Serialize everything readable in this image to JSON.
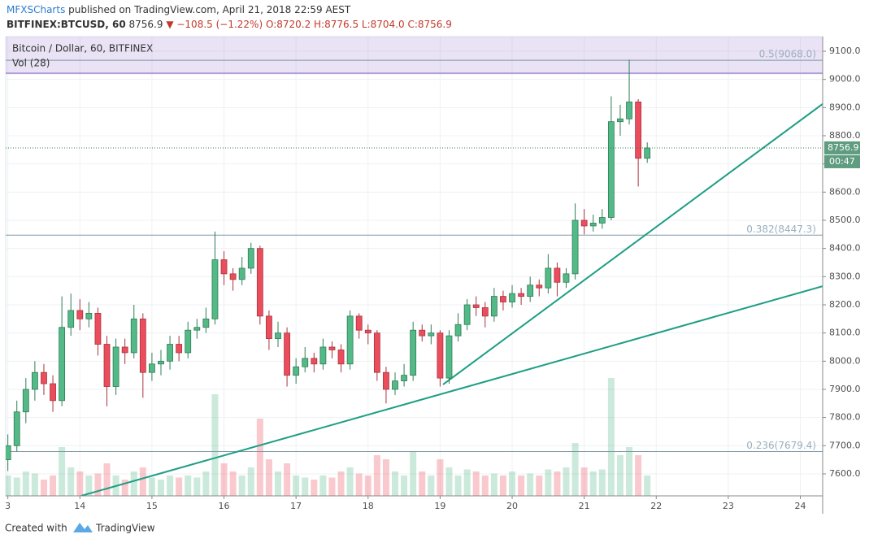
{
  "header": {
    "author": "MFXSCharts",
    "published": "published on TradingView.com, April 21, 2018 22:59 AEST",
    "symbol": "BITFINEX:BTCUSD, 60",
    "last": "8756.9",
    "change": "▼ −108.5 (−1.22%)",
    "ohlc": "O:8720.2 H:8776.5 L:8704.0 C:8756.9"
  },
  "footer": {
    "created": "Created with",
    "brand": "TradingView"
  },
  "chart_data": {
    "type": "candlestick",
    "legend": "Bitcoin / Dollar, 60, BITFINEX",
    "volume_legend": "Vol (28)",
    "countdown": "00:47",
    "up_color": "#53b987",
    "down_color": "#eb4d5c",
    "xlim": [
      12.97,
      24.31
    ],
    "ylim": [
      7522,
      9152
    ],
    "volume_lim": [
      0,
      3000
    ],
    "xticks": [
      {
        "value": 13,
        "label": "3"
      },
      14,
      15,
      16,
      17,
      18,
      19,
      20,
      21,
      22,
      23,
      24
    ],
    "yticks": [
      {
        "value": 7600,
        "label": "7600.0"
      },
      {
        "value": 7700,
        "label": "7700.0"
      },
      {
        "value": 7800,
        "label": "7800.0"
      },
      {
        "value": 7900,
        "label": "7900.0"
      },
      {
        "value": 8000,
        "label": "8000.0"
      },
      {
        "value": 8100,
        "label": "8100.0"
      },
      {
        "value": 8200,
        "label": "8200.0"
      },
      {
        "value": 8300,
        "label": "8300.0"
      },
      {
        "value": 8400,
        "label": "8400.0"
      },
      {
        "value": 8500,
        "label": "8500.0"
      },
      {
        "value": 8600,
        "label": "8600.0"
      },
      {
        "value": 8700,
        "label": "8700.0"
      },
      {
        "value": 8800,
        "label": "8800.0"
      },
      {
        "value": 8900,
        "label": "8900.0"
      },
      {
        "value": 9000,
        "label": "9000.0"
      },
      {
        "value": 9100,
        "label": "9100.0"
      }
    ],
    "grid": true,
    "fib_levels": [
      {
        "value": 9068.0,
        "label": "0.5(9068.0)"
      },
      {
        "value": 8447.3,
        "label": "0.382(8447.3)"
      },
      {
        "value": 7679.4,
        "label": "0.236(7679.4)"
      }
    ],
    "trendlines": [
      {
        "x": [
          14.016,
          24.31
        ],
        "y": [
          7522,
          8266
        ],
        "color": "#1e9e84"
      },
      {
        "x": [
          19.04,
          24.31
        ],
        "y": [
          7917,
          8913
        ],
        "color": "#1e9e84"
      }
    ],
    "x": [
      13,
      13.125,
      13.25,
      13.375,
      13.5,
      13.625,
      13.75,
      13.875,
      14,
      14.125,
      14.25,
      14.375,
      14.5,
      14.625,
      14.75,
      14.875,
      15,
      15.125,
      15.25,
      15.375,
      15.5,
      15.625,
      15.75,
      15.875,
      16,
      16.125,
      16.25,
      16.375,
      16.5,
      16.625,
      16.75,
      16.875,
      17,
      17.125,
      17.25,
      17.375,
      17.5,
      17.625,
      17.75,
      17.875,
      18,
      18.125,
      18.25,
      18.375,
      18.5,
      18.625,
      18.75,
      18.875,
      19,
      19.125,
      19.25,
      19.375,
      19.5,
      19.625,
      19.75,
      19.875,
      20,
      20.125,
      20.25,
      20.375,
      20.5,
      20.625,
      20.75,
      20.875,
      21,
      21.125,
      21.25,
      21.375,
      21.5,
      21.625,
      21.75,
      21.875
    ],
    "open": [
      7650,
      7700,
      7820,
      7900,
      7960,
      7920,
      7860,
      8120,
      8180,
      8150,
      8170,
      8060,
      7910,
      8050,
      8030,
      8150,
      7960,
      7990,
      8000,
      8060,
      8030,
      8110,
      8120,
      8150,
      8360,
      8310,
      8290,
      8330,
      8400,
      8160,
      8080,
      8100,
      7950,
      7980,
      8010,
      7990,
      8050,
      8040,
      7990,
      8160,
      8110,
      8100,
      7960,
      7900,
      7930,
      7950,
      8110,
      8090,
      8100,
      7940,
      8090,
      8130,
      8200,
      8190,
      8160,
      8230,
      8210,
      8240,
      8230,
      8270,
      8260,
      8330,
      8280,
      8310,
      8500,
      8480,
      8490,
      8510,
      8850,
      8860,
      8920,
      8720.2
    ],
    "high": [
      7740,
      7860,
      7940,
      8000,
      7990,
      7950,
      8230,
      8240,
      8220,
      8210,
      8190,
      8090,
      8080,
      8080,
      8200,
      8170,
      8030,
      8040,
      8090,
      8090,
      8140,
      8150,
      8190,
      8460,
      8390,
      8330,
      8370,
      8420,
      8410,
      8180,
      8140,
      8120,
      8010,
      8050,
      8030,
      8080,
      8070,
      8060,
      8180,
      8170,
      8130,
      8110,
      7980,
      7960,
      7990,
      8140,
      8130,
      8130,
      8110,
      8110,
      8170,
      8220,
      8230,
      8210,
      8260,
      8250,
      8270,
      8260,
      8300,
      8290,
      8380,
      8350,
      8330,
      8560,
      8540,
      8520,
      8540,
      8940,
      8910,
      9070,
      8930,
      8776.5
    ],
    "low": [
      7610,
      7680,
      7780,
      7860,
      7880,
      7820,
      7840,
      8090,
      8110,
      8120,
      8020,
      7840,
      7880,
      7990,
      8010,
      7870,
      7930,
      7950,
      7970,
      8000,
      8010,
      8080,
      8100,
      8130,
      8270,
      8250,
      8270,
      8310,
      8130,
      8040,
      8050,
      7910,
      7920,
      7960,
      7960,
      7970,
      8010,
      7960,
      7970,
      8080,
      8060,
      7930,
      7850,
      7880,
      7910,
      7930,
      8070,
      8060,
      7910,
      7920,
      8070,
      8110,
      8160,
      8120,
      8140,
      8180,
      8190,
      8200,
      8210,
      8230,
      8240,
      8230,
      8260,
      8290,
      8450,
      8460,
      8470,
      8500,
      8800,
      8840,
      8620,
      8704
    ],
    "close": [
      7700,
      7820,
      7900,
      7960,
      7920,
      7860,
      8120,
      8180,
      8150,
      8170,
      8060,
      7910,
      8050,
      8030,
      8150,
      7960,
      7990,
      8000,
      8060,
      8030,
      8110,
      8120,
      8150,
      8360,
      8310,
      8290,
      8330,
      8400,
      8160,
      8080,
      8100,
      7950,
      7980,
      8010,
      7990,
      8050,
      8040,
      7990,
      8160,
      8110,
      8100,
      7960,
      7900,
      7930,
      7950,
      8110,
      8090,
      8100,
      7940,
      8090,
      8130,
      8200,
      8190,
      8160,
      8230,
      8210,
      8240,
      8230,
      8270,
      8260,
      8330,
      8280,
      8310,
      8500,
      8480,
      8490,
      8510,
      8850,
      8860,
      8920,
      8720,
      8756.9
    ],
    "volume": [
      500,
      450,
      600,
      550,
      400,
      500,
      1200,
      700,
      600,
      500,
      550,
      800,
      500,
      400,
      600,
      700,
      450,
      400,
      500,
      450,
      500,
      450,
      600,
      2500,
      800,
      600,
      500,
      700,
      1900,
      900,
      600,
      800,
      500,
      450,
      400,
      500,
      450,
      600,
      700,
      550,
      500,
      1000,
      900,
      600,
      500,
      1100,
      600,
      500,
      900,
      700,
      500,
      650,
      600,
      500,
      550,
      500,
      600,
      500,
      550,
      500,
      650,
      600,
      700,
      1300,
      700,
      600,
      650,
      2900,
      1000,
      1200,
      1000,
      500
    ]
  }
}
